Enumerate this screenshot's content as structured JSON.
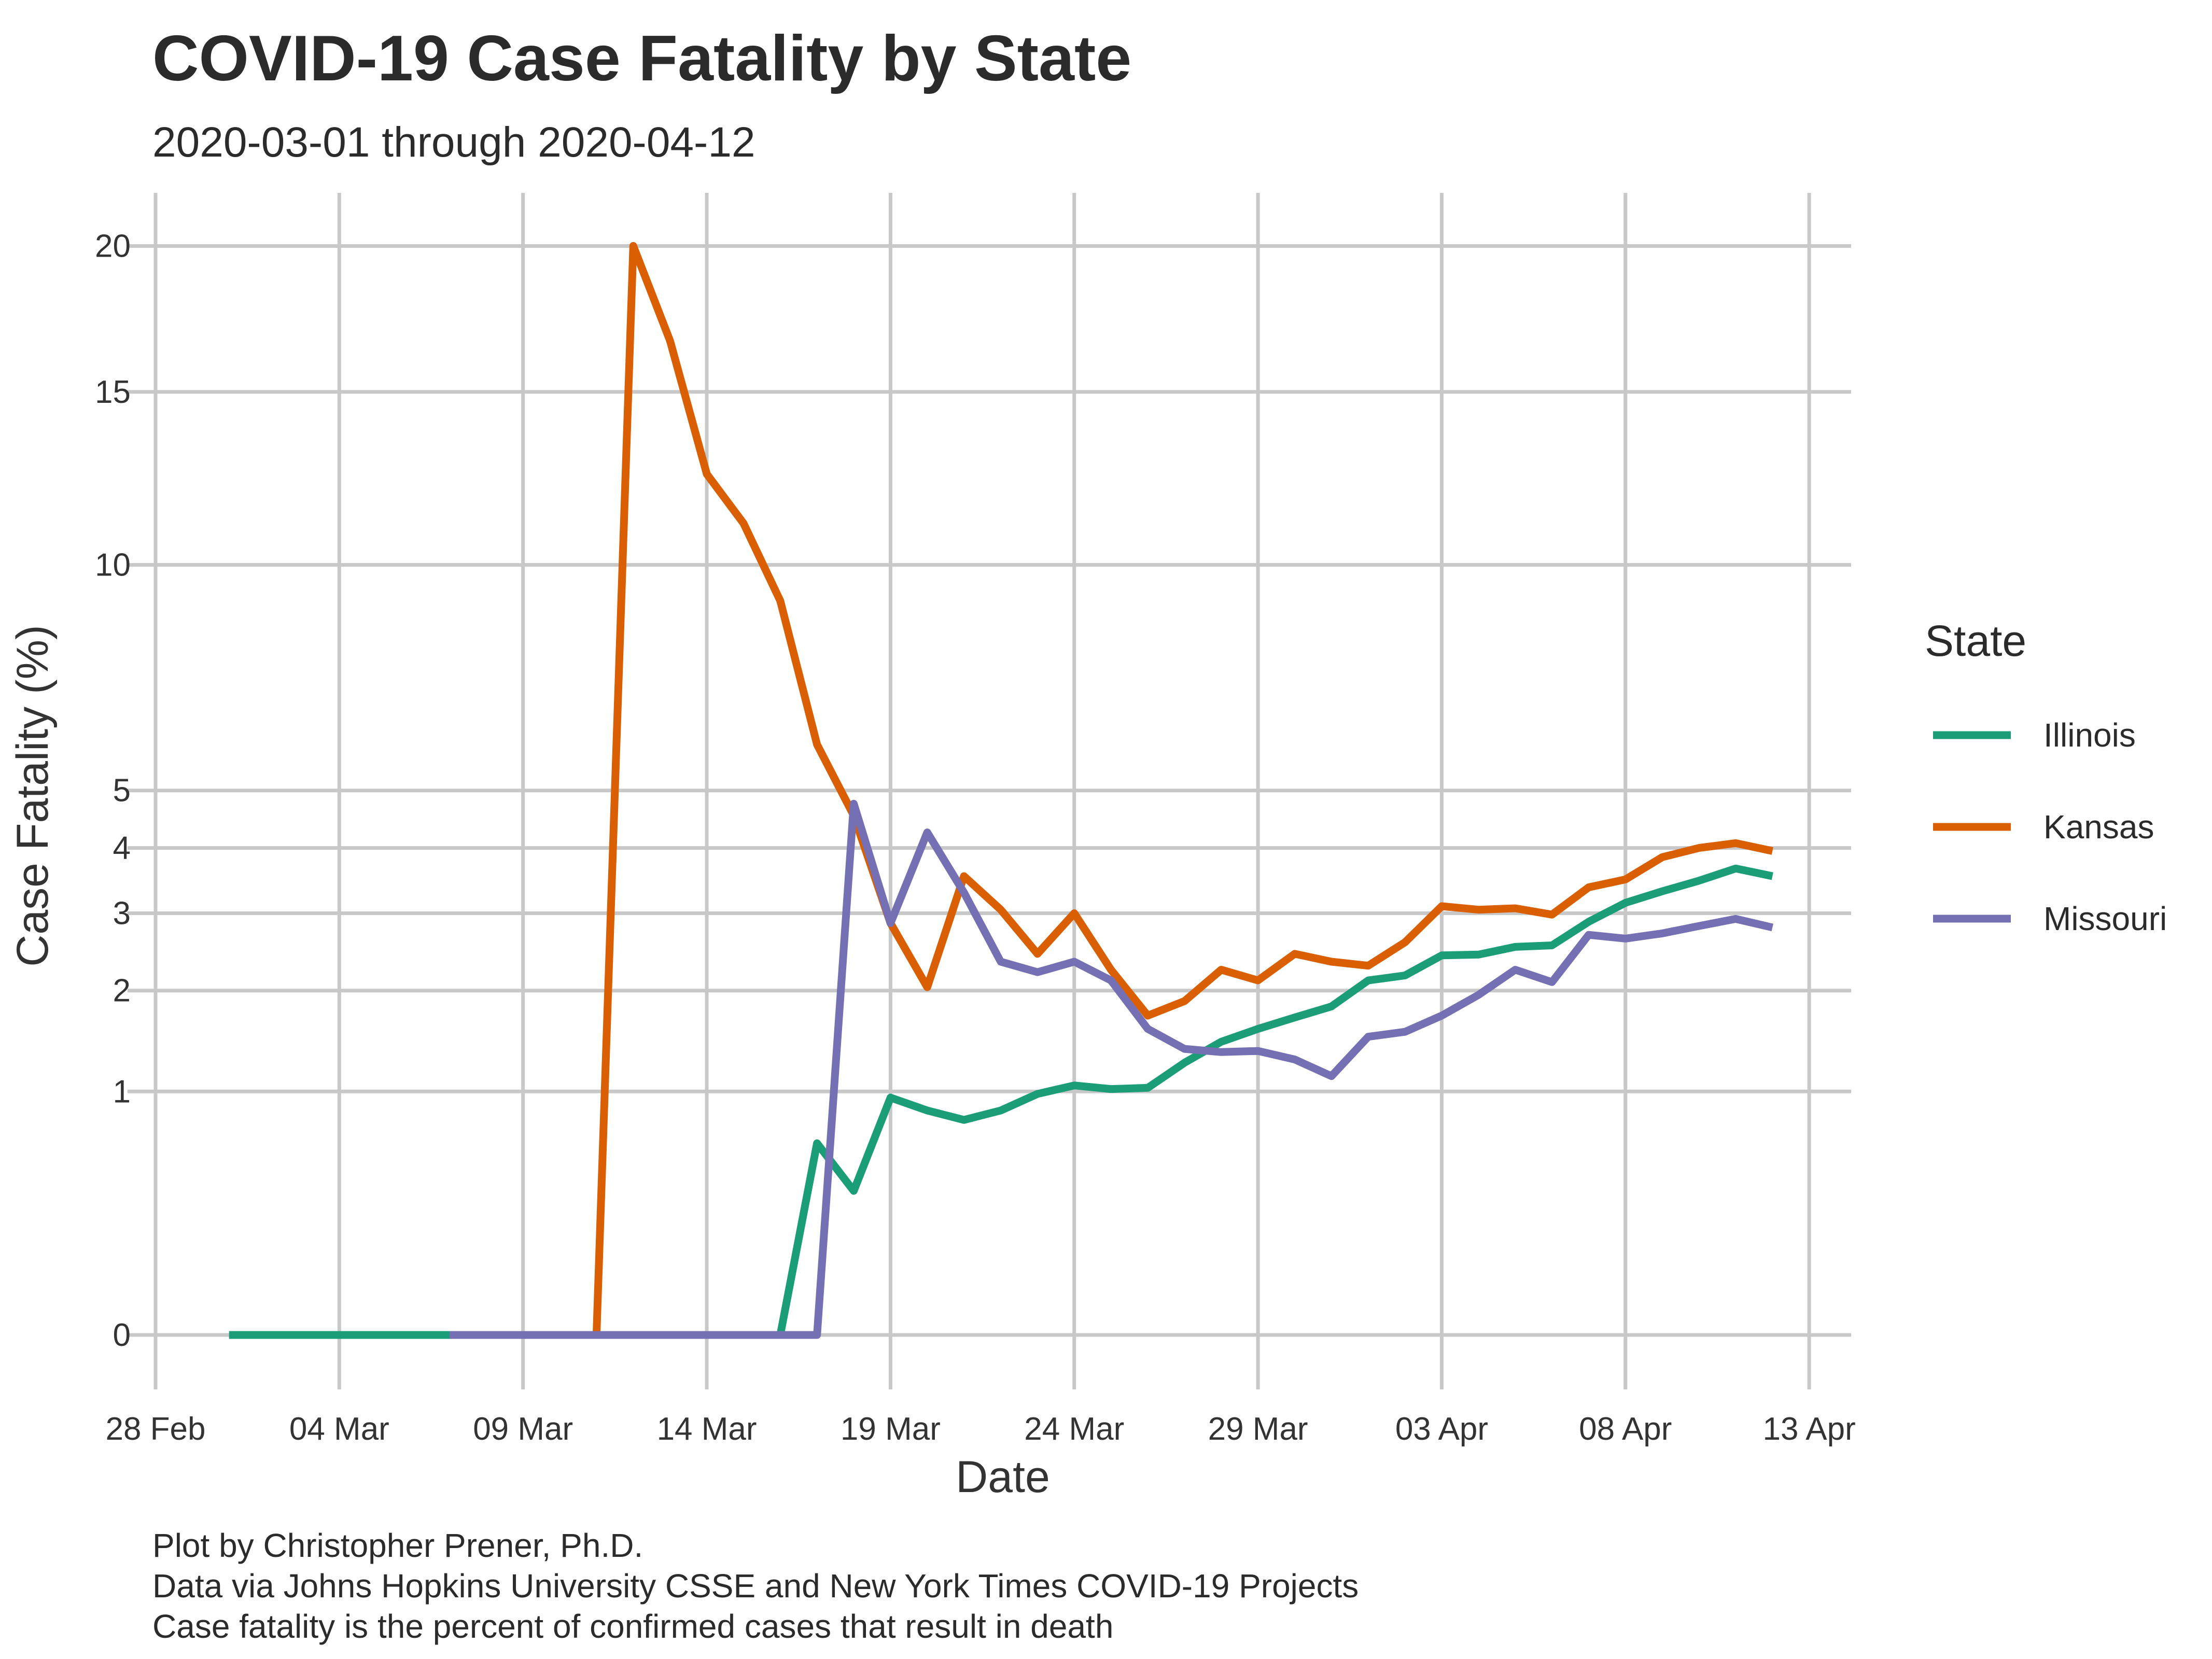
{
  "title": "COVID-19 Case Fatality by State",
  "subtitle": "2020-03-01 through 2020-04-12",
  "caption": [
    "Plot by Christopher Prener, Ph.D.",
    "Data via Johns Hopkins University CSSE and New York Times COVID-19 Projects",
    "Case fatality is the percent of confirmed cases that result in death"
  ],
  "chart_data": {
    "type": "line",
    "title": "COVID-19 Case Fatality by State",
    "subtitle": "2020-03-01 through 2020-04-12",
    "xlabel": "Date",
    "ylabel": "Case Fatality (%)",
    "x_tick_labels": [
      "28 Feb",
      "04 Mar",
      "09 Mar",
      "14 Mar",
      "19 Mar",
      "24 Mar",
      "29 Mar",
      "03 Apr",
      "08 Apr",
      "13 Apr"
    ],
    "x_tick_dates": [
      "2020-02-28",
      "2020-03-04",
      "2020-03-09",
      "2020-03-14",
      "2020-03-19",
      "2020-03-24",
      "2020-03-29",
      "2020-04-03",
      "2020-04-08",
      "2020-04-13"
    ],
    "xlim": [
      "2020-02-28",
      "2020-04-14"
    ],
    "y_ticks": [
      0,
      1,
      2,
      3,
      4,
      5,
      10,
      15,
      20
    ],
    "y_scale": "square-root",
    "ylim": [
      0,
      21
    ],
    "grid": true,
    "legend": {
      "title": "State",
      "position": "right"
    },
    "series": [
      {
        "name": "Illinois",
        "color": "#1b9e77",
        "points": [
          [
            "2020-03-01",
            0
          ],
          [
            "2020-03-02",
            0
          ],
          [
            "2020-03-03",
            0
          ],
          [
            "2020-03-04",
            0
          ],
          [
            "2020-03-05",
            0
          ],
          [
            "2020-03-06",
            0
          ],
          [
            "2020-03-07",
            0
          ],
          [
            "2020-03-08",
            0
          ],
          [
            "2020-03-09",
            0
          ],
          [
            "2020-03-10",
            0
          ],
          [
            "2020-03-11",
            0
          ],
          [
            "2020-03-12",
            0
          ],
          [
            "2020-03-13",
            0
          ],
          [
            "2020-03-14",
            0
          ],
          [
            "2020-03-15",
            0
          ],
          [
            "2020-03-16",
            0
          ],
          [
            "2020-03-17",
            0.62
          ],
          [
            "2020-03-18",
            0.35
          ],
          [
            "2020-03-19",
            0.95
          ],
          [
            "2020-03-20",
            0.85
          ],
          [
            "2020-03-21",
            0.78
          ],
          [
            "2020-03-22",
            0.85
          ],
          [
            "2020-03-23",
            0.98
          ],
          [
            "2020-03-24",
            1.05
          ],
          [
            "2020-03-25",
            1.02
          ],
          [
            "2020-03-26",
            1.03
          ],
          [
            "2020-03-27",
            1.25
          ],
          [
            "2020-03-28",
            1.45
          ],
          [
            "2020-03-29",
            1.58
          ],
          [
            "2020-03-30",
            1.7
          ],
          [
            "2020-03-31",
            1.82
          ],
          [
            "2020-04-01",
            2.12
          ],
          [
            "2020-04-02",
            2.18
          ],
          [
            "2020-04-03",
            2.43
          ],
          [
            "2020-04-04",
            2.44
          ],
          [
            "2020-04-05",
            2.54
          ],
          [
            "2020-04-06",
            2.56
          ],
          [
            "2020-04-07",
            2.88
          ],
          [
            "2020-04-08",
            3.15
          ],
          [
            "2020-04-09",
            3.32
          ],
          [
            "2020-04-10",
            3.48
          ],
          [
            "2020-04-11",
            3.67
          ],
          [
            "2020-04-12",
            3.55
          ]
        ]
      },
      {
        "name": "Kansas",
        "color": "#d95f02",
        "points": [
          [
            "2020-03-11",
            0
          ],
          [
            "2020-03-12",
            20.0
          ],
          [
            "2020-03-13",
            16.67
          ],
          [
            "2020-03-14",
            12.5
          ],
          [
            "2020-03-15",
            11.11
          ],
          [
            "2020-03-16",
            9.09
          ],
          [
            "2020-03-17",
            5.88
          ],
          [
            "2020-03-18",
            4.55
          ],
          [
            "2020-03-19",
            2.86
          ],
          [
            "2020-03-20",
            2.04
          ],
          [
            "2020-03-21",
            3.55
          ],
          [
            "2020-03-22",
            3.05
          ],
          [
            "2020-03-23",
            2.45
          ],
          [
            "2020-03-24",
            3.0
          ],
          [
            "2020-03-25",
            2.25
          ],
          [
            "2020-03-26",
            1.72
          ],
          [
            "2020-03-27",
            1.88
          ],
          [
            "2020-03-28",
            2.25
          ],
          [
            "2020-03-29",
            2.12
          ],
          [
            "2020-03-30",
            2.45
          ],
          [
            "2020-03-31",
            2.35
          ],
          [
            "2020-04-01",
            2.3
          ],
          [
            "2020-04-02",
            2.6
          ],
          [
            "2020-04-03",
            3.1
          ],
          [
            "2020-04-04",
            3.05
          ],
          [
            "2020-04-05",
            3.07
          ],
          [
            "2020-04-06",
            2.98
          ],
          [
            "2020-04-07",
            3.38
          ],
          [
            "2020-04-08",
            3.5
          ],
          [
            "2020-04-09",
            3.85
          ],
          [
            "2020-04-10",
            4.0
          ],
          [
            "2020-04-11",
            4.08
          ],
          [
            "2020-04-12",
            3.95
          ]
        ]
      },
      {
        "name": "Missouri",
        "color": "#7570b3",
        "points": [
          [
            "2020-03-07",
            0
          ],
          [
            "2020-03-08",
            0
          ],
          [
            "2020-03-09",
            0
          ],
          [
            "2020-03-10",
            0
          ],
          [
            "2020-03-11",
            0
          ],
          [
            "2020-03-12",
            0
          ],
          [
            "2020-03-13",
            0
          ],
          [
            "2020-03-14",
            0
          ],
          [
            "2020-03-15",
            0
          ],
          [
            "2020-03-16",
            0
          ],
          [
            "2020-03-17",
            0
          ],
          [
            "2020-03-18",
            4.76
          ],
          [
            "2020-03-19",
            2.86
          ],
          [
            "2020-03-20",
            4.26
          ],
          [
            "2020-03-21",
            3.3
          ],
          [
            "2020-03-22",
            2.35
          ],
          [
            "2020-03-23",
            2.22
          ],
          [
            "2020-03-24",
            2.35
          ],
          [
            "2020-03-25",
            2.12
          ],
          [
            "2020-03-26",
            1.58
          ],
          [
            "2020-03-27",
            1.38
          ],
          [
            "2020-03-28",
            1.35
          ],
          [
            "2020-03-29",
            1.36
          ],
          [
            "2020-03-30",
            1.28
          ],
          [
            "2020-03-31",
            1.13
          ],
          [
            "2020-04-01",
            1.5
          ],
          [
            "2020-04-02",
            1.55
          ],
          [
            "2020-04-03",
            1.72
          ],
          [
            "2020-04-04",
            1.95
          ],
          [
            "2020-04-05",
            2.25
          ],
          [
            "2020-04-06",
            2.1
          ],
          [
            "2020-04-07",
            2.7
          ],
          [
            "2020-04-08",
            2.65
          ],
          [
            "2020-04-09",
            2.72
          ],
          [
            "2020-04-10",
            2.82
          ],
          [
            "2020-04-11",
            2.92
          ],
          [
            "2020-04-12",
            2.8
          ]
        ]
      }
    ]
  }
}
